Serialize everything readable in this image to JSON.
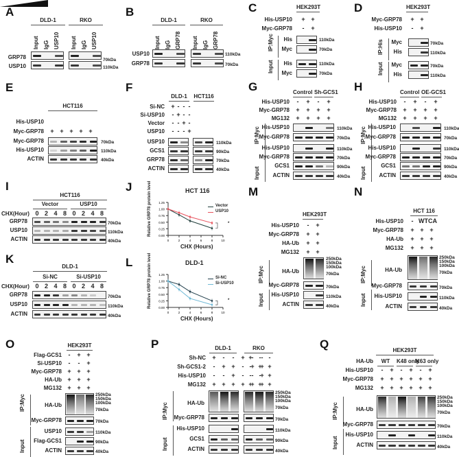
{
  "figure": {
    "panels": {
      "A": {
        "label": "A",
        "groups": [
          "DLD-1",
          "RKO"
        ],
        "lanes": [
          "Input",
          "IgG",
          "USP10"
        ],
        "rows": [
          "GRP78",
          "USP10"
        ],
        "markers": [
          "70kDa",
          "110kDa"
        ]
      },
      "B": {
        "label": "B",
        "groups": [
          "DLD-1",
          "RKO"
        ],
        "lanes": [
          "Input",
          "IgG",
          "GRP78"
        ],
        "rows": [
          "USP10",
          "GRP78"
        ],
        "markers": [
          "110kDa",
          "70kDa"
        ]
      },
      "C": {
        "label": "C",
        "cell": "HEK293T",
        "conditions": [
          {
            "name": "His-USP10",
            "signs": [
              "+",
              "+"
            ]
          },
          {
            "name": "Myc-GRP78",
            "signs": [
              "-",
              "+"
            ]
          }
        ],
        "sections": [
          {
            "name": "IP:Myc",
            "rows": [
              {
                "name": "His",
                "kda": "110kDa"
              },
              {
                "name": "Myc",
                "kda": "70kDa"
              }
            ]
          },
          {
            "name": "Input",
            "rows": [
              {
                "name": "His",
                "kda": "110kDa"
              },
              {
                "name": "Myc",
                "kda": "70kDa"
              }
            ]
          }
        ]
      },
      "D": {
        "label": "D",
        "cell": "HEK293T",
        "conditions": [
          {
            "name": "Myc-GRP78",
            "signs": [
              "+",
              "+"
            ]
          },
          {
            "name": "His-USP10",
            "signs": [
              "-",
              "+"
            ]
          }
        ],
        "sections": [
          {
            "name": "IP:His",
            "rows": [
              {
                "name": "Myc",
                "kda": "70kDa"
              },
              {
                "name": "His",
                "kda": "110kDa"
              }
            ]
          },
          {
            "name": "Input",
            "rows": [
              {
                "name": "Myc",
                "kda": "70kDa"
              },
              {
                "name": "His",
                "kda": "110kDa"
              }
            ]
          }
        ]
      },
      "E": {
        "label": "E",
        "cell": "HCT116",
        "conditions": [
          {
            "name": "His-USP10",
            "signs": [
              "gradient"
            ]
          },
          {
            "name": "Myc-GRP78",
            "signs": [
              "+",
              "+",
              "+",
              "+",
              "+"
            ]
          }
        ],
        "rows": [
          {
            "name": "Myc-GRP78",
            "kda": "70kDa"
          },
          {
            "name": "His-USP10",
            "kda": "110kDa"
          },
          {
            "name": "ACTIN",
            "kda": "40kDa"
          }
        ]
      },
      "F": {
        "label": "F",
        "groups": [
          "DLD-1",
          "HCT116"
        ],
        "conditions": [
          {
            "name": "Si-NC",
            "signs": [
              "+",
              "-",
              "-",
              "-"
            ]
          },
          {
            "name": "Si-USP10",
            "signs": [
              "-",
              "+",
              "-",
              "-"
            ]
          },
          {
            "name": "Vector",
            "signs": [
              "-",
              "-",
              "+",
              "-"
            ]
          },
          {
            "name": "USP10",
            "signs": [
              "-",
              "-",
              "-",
              "+"
            ]
          }
        ],
        "rows": [
          {
            "name": "USP10",
            "kda": "110kDa"
          },
          {
            "name": "GCS1",
            "kda": "90kDa"
          },
          {
            "name": "GRP78",
            "kda": "70kDa"
          },
          {
            "name": "ACTIN",
            "kda": "40kDa"
          }
        ]
      },
      "G": {
        "label": "G",
        "groups": [
          "Control",
          "Sh-GCS1"
        ],
        "conditions": [
          {
            "name": "His-USP10",
            "signs": [
              "-",
              "+",
              "-",
              "+"
            ]
          },
          {
            "name": "Myc-GRP78",
            "signs": [
              "+",
              "+",
              "+",
              "+"
            ]
          },
          {
            "name": "MG132",
            "signs": [
              "+",
              "+",
              "+",
              "+"
            ]
          }
        ],
        "sections": [
          {
            "name": "IP:Myc",
            "rows": [
              {
                "name": "His-USP10",
                "kda": "110kDa"
              },
              {
                "name": "Myc-GRP78",
                "kda": "70kDa"
              }
            ]
          },
          {
            "name": "Input",
            "rows": [
              {
                "name": "His-USP10",
                "kda": "110kDa"
              },
              {
                "name": "Myc-GRP78",
                "kda": "70kDa"
              },
              {
                "name": "GCS1",
                "kda": "90kDa"
              },
              {
                "name": "ACTIN",
                "kda": "40kDa"
              }
            ]
          }
        ]
      },
      "H": {
        "label": "H",
        "groups": [
          "Control",
          "OE-GCS1"
        ],
        "conditions": [
          {
            "name": "His-USP10",
            "signs": [
              "-",
              "+",
              "-",
              "+"
            ]
          },
          {
            "name": "Myc-GRP78",
            "signs": [
              "+",
              "+",
              "+",
              "+"
            ]
          },
          {
            "name": "MG132",
            "signs": [
              "+",
              "+",
              "+",
              "+"
            ]
          }
        ],
        "sections": [
          {
            "name": "IP:Myc",
            "rows": [
              {
                "name": "His-USP10",
                "kda": "110kDa"
              },
              {
                "name": "Myc-GRP78",
                "kda": "70kDa"
              }
            ]
          },
          {
            "name": "Input",
            "rows": [
              {
                "name": "His-USP10",
                "kda": "110kDa"
              },
              {
                "name": "Myc-GRP78",
                "kda": "70kDa"
              },
              {
                "name": "GCS1",
                "kda": "90kDa"
              },
              {
                "name": "ACTIN",
                "kda": "40kDa"
              }
            ]
          }
        ]
      },
      "I": {
        "label": "I",
        "cell": "HCT116",
        "groups": [
          "Vector",
          "USP10"
        ],
        "time_label": "CHX(Hour)",
        "times": [
          "0",
          "2",
          "4",
          "8",
          "0",
          "2",
          "4",
          "8"
        ],
        "rows": [
          {
            "name": "GRP78",
            "kda": "70kDa"
          },
          {
            "name": "USP10",
            "kda": "110kDa"
          },
          {
            "name": "ACTIN",
            "kda": "40kDa"
          }
        ]
      },
      "J": {
        "label": "J"
      },
      "K": {
        "label": "K",
        "cell": "DLD-1",
        "groups": [
          "Si-NC",
          "Si-USP10"
        ],
        "time_label": "CHX(Hour)",
        "times": [
          "0",
          "2",
          "4",
          "8",
          "0",
          "2",
          "4",
          "8"
        ],
        "rows": [
          {
            "name": "GRP78",
            "kda": "70kDa"
          },
          {
            "name": "USP10",
            "kda": "110kDa"
          },
          {
            "name": "ACTIN",
            "kda": "40kDa"
          }
        ]
      },
      "L": {
        "label": "L"
      },
      "M": {
        "label": "M",
        "cell": "HEK293T",
        "conditions": [
          {
            "name": "His-USP10",
            "signs": [
              "-",
              "+"
            ]
          },
          {
            "name": "Myc-GRP78",
            "signs": [
              "+",
              "+"
            ]
          },
          {
            "name": "HA-Ub",
            "signs": [
              "+",
              "+"
            ]
          },
          {
            "name": "MG132",
            "signs": [
              "+",
              "+"
            ]
          }
        ],
        "sections": [
          {
            "name": "IP:Myc",
            "rows": [
              {
                "name": "HA-Ub"
              },
              {
                "name": "Myc-GRP78",
                "kda": "70kDa"
              }
            ]
          },
          {
            "name": "Input",
            "rows": [
              {
                "name": "His-USP10",
                "kda": "110kDa"
              },
              {
                "name": "ACTIN",
                "kda": "40kDa"
              }
            ]
          }
        ],
        "ub_markers": [
          "250kDa",
          "150kDa",
          "100kDa",
          "70kDa"
        ]
      },
      "N": {
        "label": "N",
        "cell": "HCT 116",
        "conditions": [
          {
            "name": "His-USP10",
            "signs": [
              "-",
              "WT",
              "CA"
            ]
          },
          {
            "name": "Myc-GRP78",
            "signs": [
              "+",
              "+",
              "+"
            ]
          },
          {
            "name": "HA-Ub",
            "signs": [
              "+",
              "+",
              "+"
            ]
          },
          {
            "name": "MG132",
            "signs": [
              "+",
              "+",
              "+"
            ]
          }
        ],
        "sections": [
          {
            "name": "IP:Myc",
            "rows": [
              {
                "name": "HA-Ub"
              },
              {
                "name": "Myc-GRP78",
                "kda": "70kDa"
              }
            ]
          },
          {
            "name": "Input",
            "rows": [
              {
                "name": "His-USP10",
                "kda": "110kDa"
              },
              {
                "name": "ACTIN",
                "kda": "40kDa"
              }
            ]
          }
        ],
        "ub_markers": [
          "250kDa",
          "150kDa",
          "100kDa",
          "70kDa"
        ]
      },
      "O": {
        "label": "O",
        "cell": "HEK293T",
        "conditions": [
          {
            "name": "Flag-GCS1",
            "signs": [
              "-",
              "+",
              "+"
            ]
          },
          {
            "name": "Si-USP10",
            "signs": [
              "-",
              "-",
              "+"
            ]
          },
          {
            "name": "Myc-GRP78",
            "signs": [
              "+",
              "+",
              "+"
            ]
          },
          {
            "name": "HA-Ub",
            "signs": [
              "+",
              "+",
              "+"
            ]
          },
          {
            "name": "MG132",
            "signs": [
              "+",
              "+",
              "+"
            ]
          }
        ],
        "sections": [
          {
            "name": "IP:Myc",
            "rows": [
              {
                "name": "HA-Ub"
              },
              {
                "name": "Myc-GRP78",
                "kda": "70kDa"
              }
            ]
          },
          {
            "name": "Input",
            "rows": [
              {
                "name": "USP10",
                "kda": "110kDa"
              },
              {
                "name": "Flag-GCS1",
                "kda": "90kDa"
              },
              {
                "name": "ACTIN",
                "kda": "40kDa"
              }
            ]
          }
        ],
        "ub_markers": [
          "250kDa",
          "150kDa",
          "100kDa",
          "70kDa"
        ]
      },
      "P": {
        "label": "P",
        "groups": [
          "DLD-1",
          "RKO"
        ],
        "conditions": [
          {
            "name": "Sh-NC",
            "signs": [
              "+",
              "-",
              "-",
              "+",
              "-",
              "-"
            ]
          },
          {
            "name": "Sh-GCS1-2",
            "signs": [
              "-",
              "+",
              "+",
              "-",
              "+",
              "+"
            ]
          },
          {
            "name": "His-USP10",
            "signs": [
              "-",
              "-",
              "+",
              "-",
              "-",
              "+"
            ]
          },
          {
            "name": "MG132",
            "signs": [
              "+",
              "+",
              "+",
              "+",
              "+",
              "+"
            ]
          }
        ],
        "sections": [
          {
            "name": "IP:Myc",
            "rows": [
              {
                "name": "HA-Ub"
              },
              {
                "name": "Myc-GRP78",
                "kda": "70kDa"
              }
            ]
          },
          {
            "name": "Input",
            "rows": [
              {
                "name": "His-USP10",
                "kda": "110kDa"
              },
              {
                "name": "GCS1",
                "kda": "90kDa"
              },
              {
                "name": "ACTIN",
                "kda": "40kDa"
              }
            ]
          }
        ],
        "ub_markers": [
          "250kDa",
          "150kDa",
          "100kDa",
          "70kDa"
        ]
      },
      "Q": {
        "label": "Q",
        "cell": "HEK293T",
        "ub_groups": [
          "WT",
          "K48 only",
          "K63 only"
        ],
        "conditions": [
          {
            "name": "HA-Ub",
            "signs": []
          },
          {
            "name": "His-USP10",
            "signs": [
              "-",
              "+",
              "-",
              "+",
              "-",
              "+"
            ]
          },
          {
            "name": "Myc-GRP78",
            "signs": [
              "+",
              "+",
              "+",
              "+",
              "+",
              "+"
            ]
          },
          {
            "name": "MG132",
            "signs": [
              "+",
              "+",
              "+",
              "+",
              "+",
              "+"
            ]
          }
        ],
        "sections": [
          {
            "name": "IP:Myc",
            "rows": [
              {
                "name": "HA-Ub"
              },
              {
                "name": "Myc-GRP78",
                "kda": "70kDa"
              }
            ]
          },
          {
            "name": "Input",
            "rows": [
              {
                "name": "His-USP10",
                "kda": "110kDa"
              },
              {
                "name": "ACTIN",
                "kda": "40kDa"
              }
            ]
          }
        ],
        "ub_markers": [
          "250kDa",
          "150kDa",
          "100kDa",
          "70kDa"
        ]
      }
    }
  },
  "chart_data": [
    {
      "panel": "J",
      "type": "line",
      "title": "HCT 116",
      "xlabel": "CHX (Hours)",
      "ylabel": "Relative GRP78 protein level",
      "x": [
        0,
        2,
        4,
        8
      ],
      "xticks": [
        "0",
        "2",
        "4",
        "6",
        "8",
        "10"
      ],
      "yticks": [
        "0.00",
        "0.25",
        "0.50",
        "0.75",
        "1.00",
        "1.25"
      ],
      "xlim": [
        0,
        10
      ],
      "ylim": [
        0,
        1.25
      ],
      "series": [
        {
          "name": "Vector",
          "color": "#1f3d3a",
          "values": [
            1.0,
            0.78,
            0.55,
            0.27
          ]
        },
        {
          "name": "USP10",
          "color": "#e8505b",
          "values": [
            1.0,
            0.86,
            0.7,
            0.47
          ]
        }
      ],
      "annotation": "*",
      "legend_position": "upper right",
      "grid": false
    },
    {
      "panel": "L",
      "type": "line",
      "title": "DLD-1",
      "xlabel": "CHX (Hours)",
      "ylabel": "Relative GRP78 protein level",
      "x": [
        0,
        2,
        4,
        8
      ],
      "xticks": [
        "0",
        "2",
        "4",
        "6",
        "8",
        "10"
      ],
      "yticks": [
        "0.00",
        "0.25",
        "0.50",
        "0.75",
        "1.00",
        "1.25"
      ],
      "xlim": [
        0,
        10
      ],
      "ylim": [
        0,
        1.25
      ],
      "series": [
        {
          "name": "Si-NC",
          "color": "#1f3d4a",
          "values": [
            1.0,
            0.87,
            0.6,
            0.25
          ]
        },
        {
          "name": "Si-USP10",
          "color": "#6fb9d6",
          "values": [
            1.0,
            0.68,
            0.34,
            0.1
          ]
        }
      ],
      "annotation": "*",
      "legend_position": "upper right",
      "grid": false
    }
  ]
}
